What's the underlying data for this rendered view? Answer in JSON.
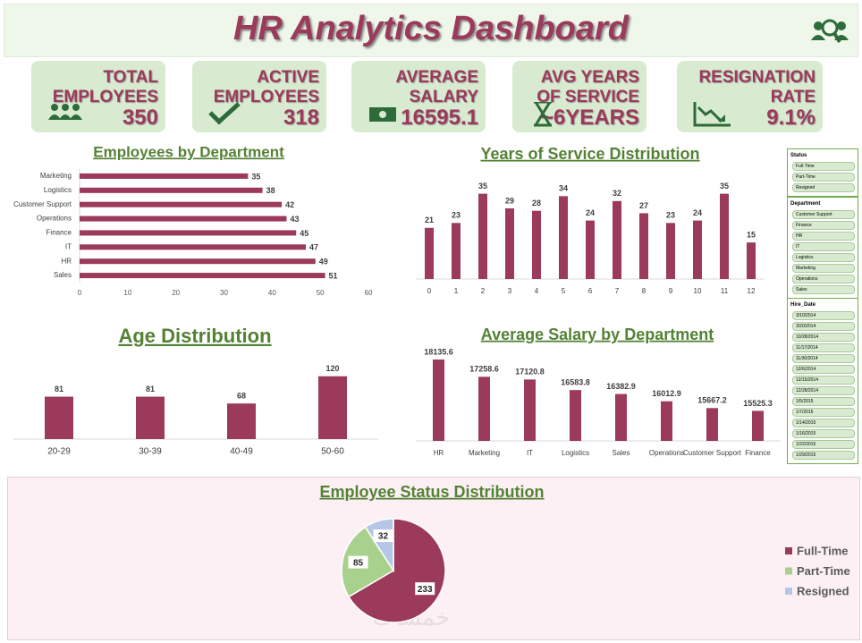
{
  "header": {
    "title": "HR Analytics Dashboard"
  },
  "kpis": [
    {
      "label": "TOTAL EMPLOYEES",
      "value": "350"
    },
    {
      "label": "ACTIVE EMPLOYEES",
      "value": "318"
    },
    {
      "label": "AVERAGE SALARY",
      "value": "16595.1"
    },
    {
      "label": "AVG YEARS OF SERVICE",
      "value": "~6YEARS"
    },
    {
      "label": "RESIGNATION RATE",
      "value": "9.1%"
    }
  ],
  "chart_data": [
    {
      "type": "bar",
      "orientation": "horizontal",
      "title": "Employees by Department",
      "categories": [
        "Marketing",
        "Logistics",
        "Customer Support",
        "Operations",
        "Finance",
        "IT",
        "HR",
        "Sales"
      ],
      "values": [
        35,
        38,
        42,
        43,
        45,
        47,
        49,
        51
      ],
      "color": "#9b3a5a",
      "xlim": [
        0,
        60
      ],
      "xticks": [
        0,
        10,
        20,
        30,
        40,
        50,
        60
      ]
    },
    {
      "type": "bar",
      "title": "Years of Service Distribution",
      "categories": [
        "0",
        "1",
        "2",
        "3",
        "4",
        "5",
        "6",
        "7",
        "8",
        "9",
        "10",
        "11",
        "12"
      ],
      "values": [
        21,
        23,
        35,
        29,
        28,
        34,
        24,
        32,
        27,
        23,
        24,
        35,
        15
      ],
      "color": "#9b3a5a",
      "ylim": [
        0,
        40
      ]
    },
    {
      "type": "bar",
      "title": "Age Distribution",
      "categories": [
        "20-29",
        "30-39",
        "40-49",
        "50-60"
      ],
      "values": [
        81,
        81,
        68,
        120
      ],
      "color": "#9b3a5a",
      "ylim": [
        0,
        140
      ]
    },
    {
      "type": "bar",
      "title": "Average Salary by Department",
      "categories": [
        "HR",
        "Marketing",
        "IT",
        "Logistics",
        "Sales",
        "Operations",
        "Customer Support",
        "Finance"
      ],
      "values": [
        18135.6,
        17258.6,
        17120.8,
        16583.8,
        16382.9,
        16012.9,
        15667.2,
        15525.3
      ],
      "color": "#9b3a5a",
      "ylim": [
        14000,
        18500
      ]
    },
    {
      "type": "pie",
      "title": "Employee Status Distribution",
      "categories": [
        "Full-Time",
        "Part-Time",
        "Resigned"
      ],
      "values": [
        233,
        85,
        32
      ],
      "colors": [
        "#9b3a5a",
        "#a9d18e",
        "#b4c7e7"
      ],
      "legend": "right"
    }
  ],
  "slicers": [
    {
      "title": "Status",
      "items": [
        "Full-Time",
        "Part-Time",
        "Resigned"
      ]
    },
    {
      "title": "Department",
      "items": [
        "Customer Support",
        "Finance",
        "HR",
        "IT",
        "Logistics",
        "Marketing",
        "Operations",
        "Sales"
      ]
    },
    {
      "title": "Hire_Date",
      "items": [
        "3/10/2014",
        "3/20/2014",
        "10/28/2014",
        "11/17/2014",
        "11/30/2014",
        "12/6/2014",
        "12/15/2014",
        "12/28/2014",
        "1/5/2015",
        "1/7/2015",
        "1/14/2015",
        "1/16/2015",
        "1/22/2015",
        "1/29/2015"
      ]
    }
  ],
  "watermark": "خمسات"
}
